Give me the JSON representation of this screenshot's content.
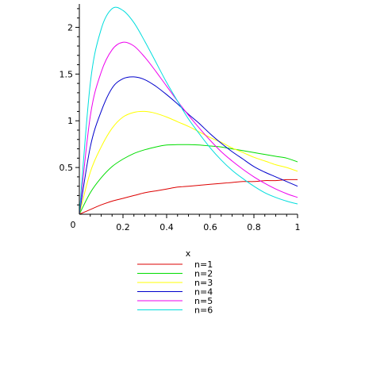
{
  "chart_data": {
    "type": "line",
    "xlabel": "x",
    "ylabel": "",
    "xlim": [
      0,
      1
    ],
    "ylim": [
      0,
      2.25
    ],
    "grid": false,
    "legend_position": "below",
    "x_ticks": [
      0.2,
      0.4,
      0.6,
      0.8,
      1
    ],
    "x_tick_labels": [
      "0.2",
      "0.4",
      "0.6",
      "0.8",
      "1"
    ],
    "y_ticks": [
      0.5,
      1,
      1.5,
      2
    ],
    "y_tick_labels": [
      "0.5",
      "1",
      "1.5",
      "2"
    ],
    "origin_label": "0",
    "x": [
      0,
      0.05,
      0.1,
      0.15,
      0.2,
      0.25,
      0.3,
      0.35,
      0.4,
      0.45,
      0.5,
      0.55,
      0.6,
      0.65,
      0.7,
      0.75,
      0.8,
      0.85,
      0.9,
      0.95,
      1
    ],
    "series": [
      {
        "name": "n=1",
        "color": "#dd0000",
        "values": [
          0,
          0.05,
          0.1,
          0.14,
          0.17,
          0.2,
          0.23,
          0.25,
          0.27,
          0.29,
          0.3,
          0.31,
          0.32,
          0.33,
          0.34,
          0.35,
          0.35,
          0.36,
          0.36,
          0.37,
          0.37
        ]
      },
      {
        "name": "n=2",
        "color": "#00dd00",
        "values": [
          0,
          0.23,
          0.39,
          0.51,
          0.59,
          0.65,
          0.69,
          0.72,
          0.74,
          0.745,
          0.745,
          0.74,
          0.73,
          0.72,
          0.7,
          0.68,
          0.66,
          0.64,
          0.62,
          0.6,
          0.56
        ]
      },
      {
        "name": "n=3",
        "color": "#ffff00",
        "values": [
          0,
          0.45,
          0.72,
          0.92,
          1.04,
          1.09,
          1.1,
          1.08,
          1.04,
          0.99,
          0.94,
          0.88,
          0.82,
          0.77,
          0.71,
          0.66,
          0.61,
          0.57,
          0.53,
          0.5,
          0.46
        ]
      },
      {
        "name": "n=4",
        "color": "#0000cc",
        "values": [
          0,
          0.72,
          1.1,
          1.35,
          1.45,
          1.47,
          1.44,
          1.37,
          1.28,
          1.18,
          1.07,
          0.97,
          0.86,
          0.76,
          0.67,
          0.59,
          0.51,
          0.45,
          0.4,
          0.35,
          0.3
        ]
      },
      {
        "name": "n=5",
        "color": "#ee00ee",
        "values": [
          0,
          1.05,
          1.52,
          1.76,
          1.84,
          1.8,
          1.68,
          1.53,
          1.37,
          1.21,
          1.06,
          0.92,
          0.79,
          0.67,
          0.57,
          0.48,
          0.4,
          0.33,
          0.27,
          0.22,
          0.18
        ]
      },
      {
        "name": "n=6",
        "color": "#00dddd",
        "values": [
          0,
          1.4,
          1.98,
          2.2,
          2.18,
          2.05,
          1.85,
          1.63,
          1.41,
          1.21,
          1.02,
          0.86,
          0.71,
          0.58,
          0.47,
          0.38,
          0.3,
          0.23,
          0.18,
          0.14,
          0.11
        ]
      }
    ]
  }
}
